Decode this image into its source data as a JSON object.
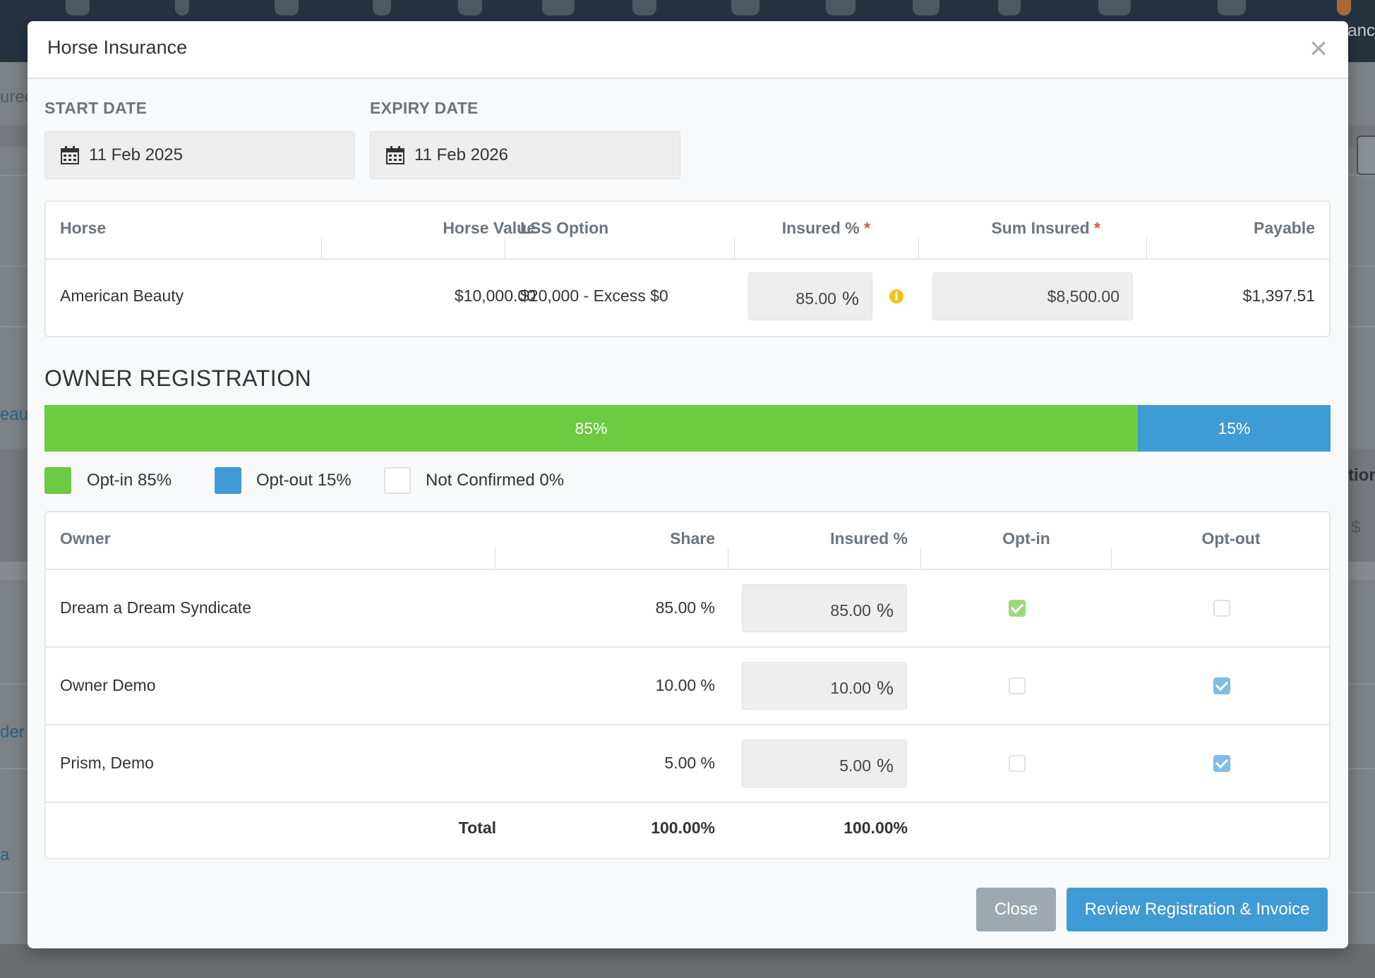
{
  "background": {
    "nav_text": "anc",
    "side_texts": [
      "urec",
      "eaut",
      "der",
      "a"
    ],
    "right_texts": [
      "tior",
      "$"
    ]
  },
  "modal": {
    "title": "Horse Insurance",
    "close_icon": "close-icon",
    "start_date": {
      "label": "START DATE",
      "value": "11 Feb 2025"
    },
    "expiry_date": {
      "label": "EXPIRY DATE",
      "value": "11 Feb 2026"
    },
    "calendar_icon": "calendar-icon",
    "horse_table": {
      "headers": {
        "horse": "Horse",
        "value": "Horse Value",
        "lss": "LSS Option",
        "insured": "Insured %",
        "sum": "Sum Insured",
        "payable": "Payable",
        "required_mark": "*"
      },
      "row": {
        "horse": "American Beauty",
        "value": "$10,000.00",
        "lss": "$20,000 - Excess $0",
        "insured": "85.00",
        "insured_unit": "%",
        "sum": "$8,500.00",
        "payable": "$1,397.51"
      },
      "info_icon": "info-icon"
    },
    "owner_registration": {
      "title": "OWNER REGISTRATION",
      "progress": [
        {
          "label": "85%",
          "percent": 85,
          "color": "#6ccb40"
        },
        {
          "label": "15%",
          "percent": 15,
          "color": "#3f9bd3"
        }
      ],
      "legend": [
        {
          "label": "Opt-in 85%",
          "color": "#6ccb40"
        },
        {
          "label": "Opt-out 15%",
          "color": "#3f9bd3"
        },
        {
          "label": "Not Confirmed 0%",
          "color": "#ffffff"
        }
      ]
    },
    "owner_table": {
      "headers": {
        "owner": "Owner",
        "share": "Share",
        "insured": "Insured %",
        "optin": "Opt-in",
        "optout": "Opt-out"
      },
      "rows": [
        {
          "owner": "Dream a Dream Syndicate",
          "share": "85.00 %",
          "insured": "85.00",
          "unit": "%",
          "optin": true,
          "optout": false
        },
        {
          "owner": "Owner Demo",
          "share": "10.00 %",
          "insured": "10.00",
          "unit": "%",
          "optin": false,
          "optout": true
        },
        {
          "owner": "Prism, Demo",
          "share": "5.00 %",
          "insured": "5.00",
          "unit": "%",
          "optin": false,
          "optout": true
        }
      ],
      "total": {
        "label": "Total",
        "share": "100.00%",
        "insured": "100.00%"
      }
    },
    "buttons": {
      "close": "Close",
      "review": "Review Registration & Invoice"
    },
    "colors": {
      "optin_check": "#9ed77f",
      "optout_check": "#7fbde4",
      "close_button": "#9ea8b0",
      "primary_button": "#3f9bd3"
    }
  }
}
